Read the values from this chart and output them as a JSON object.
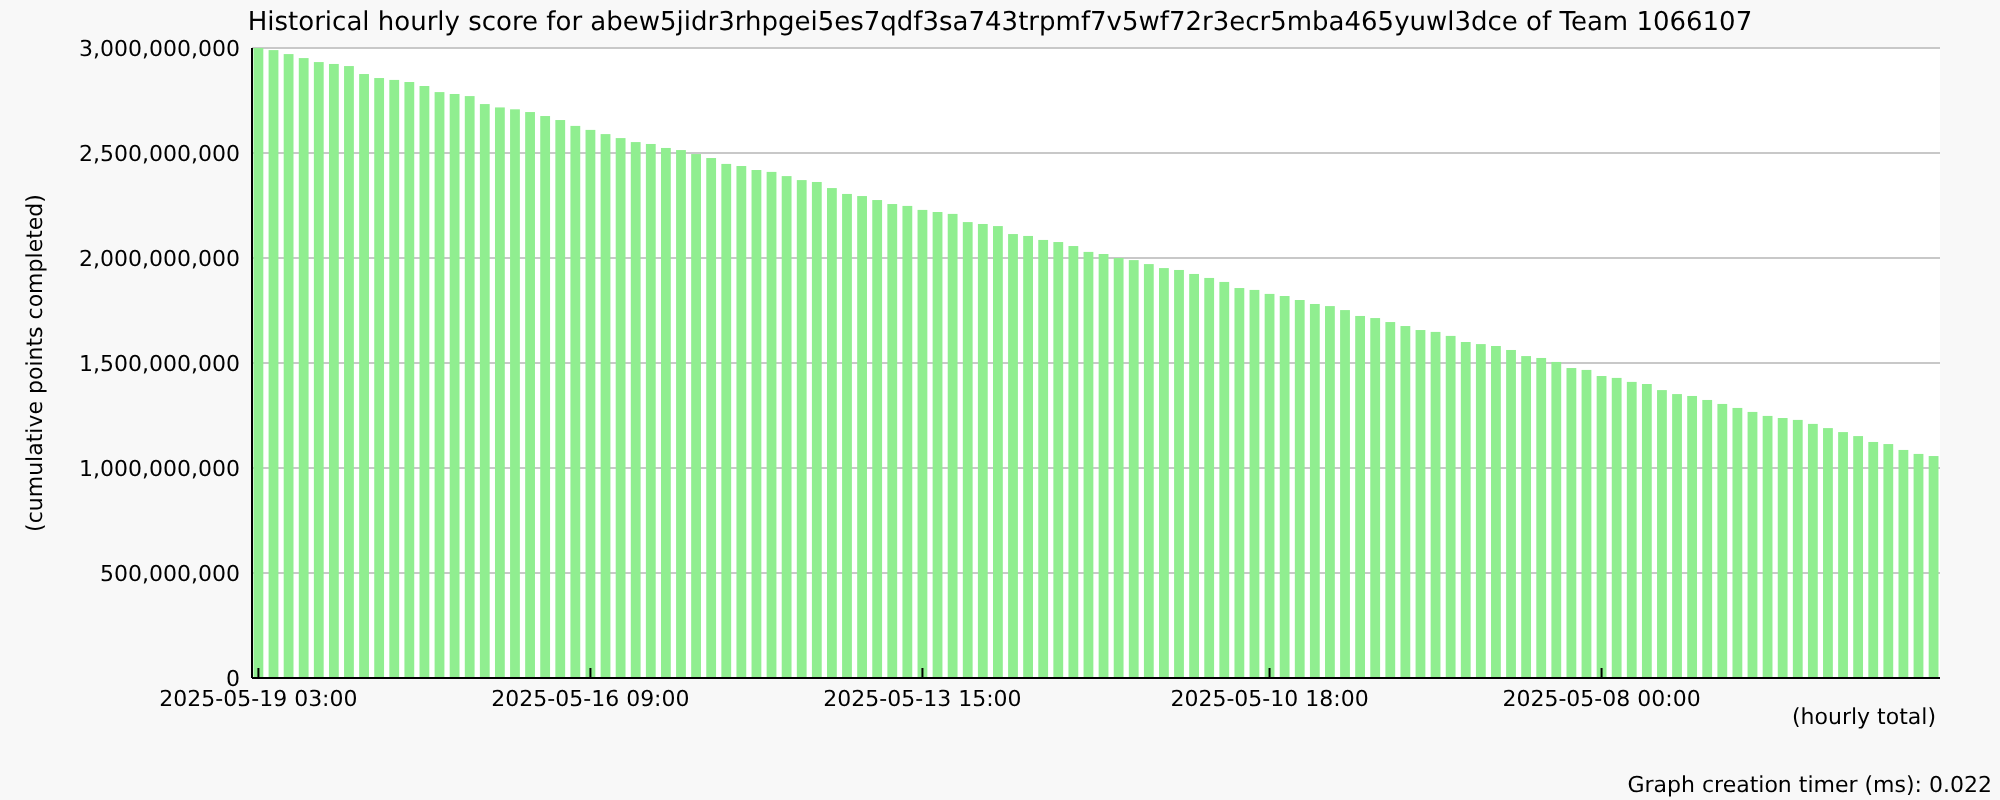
{
  "chart_data": {
    "type": "bar",
    "title": "Historical hourly score for abew5jidr3rhpgei5es7qdf3sa743trpmf7v5wf72r3ecr5mba465yuwl3dce of Team 1066107",
    "xlabel": "(hourly total)",
    "ylabel": "(cumulative points completed)",
    "annotations": [
      "Graph creation timer (ms): 0.022"
    ],
    "categories": [
      "2025-05-19 03:00",
      null,
      null,
      null,
      null,
      null,
      null,
      null,
      null,
      null,
      null,
      null,
      null,
      null,
      null,
      null,
      null,
      null,
      null,
      null,
      null,
      null,
      "2025-05-16 09:00",
      null,
      null,
      null,
      null,
      null,
      null,
      null,
      null,
      null,
      null,
      null,
      null,
      null,
      null,
      null,
      null,
      null,
      null,
      null,
      null,
      null,
      "2025-05-13 15:00",
      null,
      null,
      null,
      null,
      null,
      null,
      null,
      null,
      null,
      null,
      null,
      null,
      null,
      null,
      null,
      null,
      null,
      null,
      null,
      null,
      null,
      null,
      "2025-05-10 18:00",
      null,
      null,
      null,
      null,
      null,
      null,
      null,
      null,
      null,
      null,
      null,
      null,
      null,
      null,
      null,
      null,
      null,
      null,
      null,
      null,
      null,
      "2025-05-08 00:00",
      null,
      null,
      null,
      null,
      null,
      null,
      null,
      null,
      null,
      null,
      null,
      null,
      null,
      null,
      null,
      null,
      null,
      null,
      null,
      null,
      null,
      null
    ],
    "values": [
      3000000000,
      2990000000,
      2971000000,
      2952000000,
      2933000000,
      2924000000,
      2914000000,
      2876000000,
      2857000000,
      2848000000,
      2838000000,
      2819000000,
      2790000000,
      2781000000,
      2771000000,
      2733000000,
      2717000000,
      2708000000,
      2695000000,
      2676000000,
      2657000000,
      2629000000,
      2610000000,
      2590000000,
      2571000000,
      2552000000,
      2543000000,
      2524000000,
      2514000000,
      2495000000,
      2476000000,
      2448000000,
      2438000000,
      2419000000,
      2410000000,
      2390000000,
      2371000000,
      2362000000,
      2333000000,
      2305000000,
      2295000000,
      2276000000,
      2257000000,
      2248000000,
      2229000000,
      2219000000,
      2210000000,
      2171000000,
      2162000000,
      2152000000,
      2114000000,
      2105000000,
      2086000000,
      2076000000,
      2057000000,
      2029000000,
      2019000000,
      2000000000,
      1990000000,
      1971000000,
      1952000000,
      1943000000,
      1924000000,
      1905000000,
      1886000000,
      1857000000,
      1848000000,
      1829000000,
      1819000000,
      1800000000,
      1781000000,
      1771000000,
      1752000000,
      1724000000,
      1714000000,
      1695000000,
      1676000000,
      1657000000,
      1648000000,
      1629000000,
      1600000000,
      1590000000,
      1581000000,
      1562000000,
      1533000000,
      1524000000,
      1505000000,
      1476000000,
      1467000000,
      1438000000,
      1429000000,
      1410000000,
      1400000000,
      1371000000,
      1352000000,
      1343000000,
      1324000000,
      1305000000,
      1286000000,
      1267000000,
      1248000000,
      1238000000,
      1229000000,
      1210000000,
      1190000000,
      1171000000,
      1152000000,
      1124000000,
      1114000000,
      1086000000,
      1067000000,
      1057000000
    ],
    "color": "#90ee90",
    "ylim": [
      0,
      3000000000
    ],
    "yticks": [
      {
        "value": 0,
        "label": "0"
      },
      {
        "value": 500000000,
        "label": "500,000,000"
      },
      {
        "value": 1000000000,
        "label": "1,000,000,000"
      },
      {
        "value": 1500000000,
        "label": "1,500,000,000"
      },
      {
        "value": 2000000000,
        "label": "2,000,000,000"
      },
      {
        "value": 2500000000,
        "label": "2,500,000,000"
      },
      {
        "value": 3000000000,
        "label": "3,000,000,000"
      }
    ],
    "grid": "y"
  }
}
